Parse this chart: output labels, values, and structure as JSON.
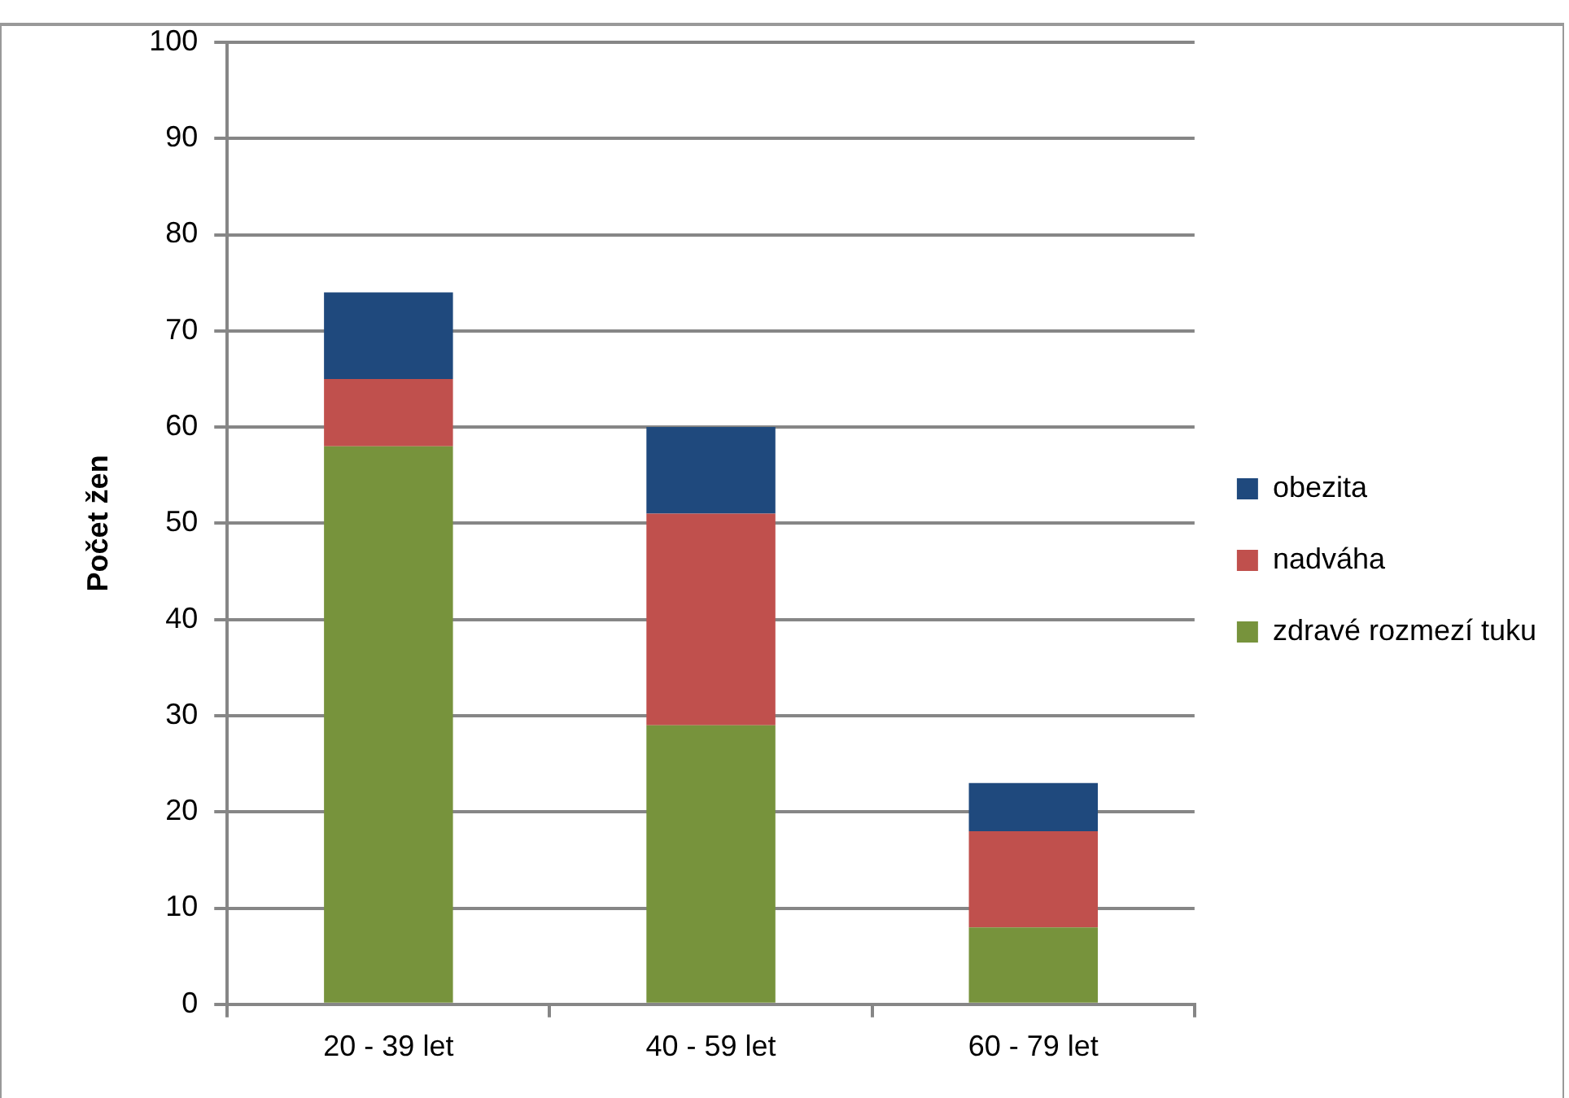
{
  "chart_data": {
    "type": "bar",
    "stacked": true,
    "ylabel": "Počet žen",
    "categories": [
      "20 - 39 let",
      "40 - 59 let",
      "60 - 79 let"
    ],
    "series": [
      {
        "name": "zdravé rozmezí tuku",
        "color": "#77933c",
        "values": [
          58,
          29,
          8
        ]
      },
      {
        "name": "nadváha",
        "color": "#c0504d",
        "values": [
          7,
          22,
          10
        ]
      },
      {
        "name": "obezita",
        "color": "#1f497d",
        "values": [
          9,
          9,
          5
        ]
      }
    ],
    "ylim": [
      0,
      100
    ],
    "yticks": [
      0,
      10,
      20,
      30,
      40,
      50,
      60,
      70,
      80,
      90,
      100
    ],
    "grid": "y",
    "legend": "right"
  }
}
